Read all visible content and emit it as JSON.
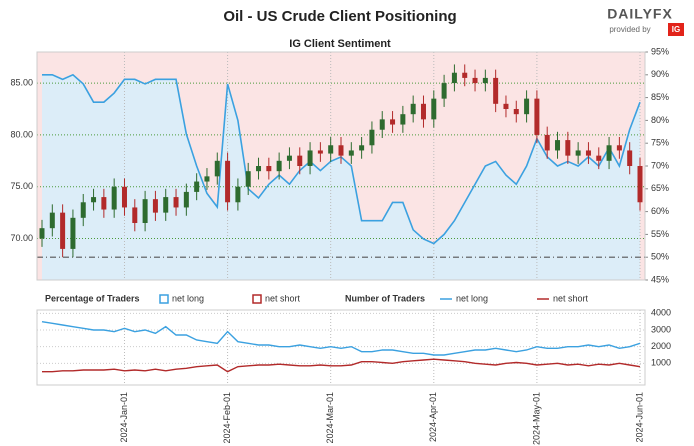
{
  "branding": {
    "logo": "DAILYFX",
    "byline": "provided by",
    "badge": "IG"
  },
  "chart_data": [
    {
      "type": "candlestick",
      "title": "Oil - US Crude Client Positioning",
      "subtitle": "IG Client Sentiment",
      "categories": [
        null,
        null,
        null,
        null,
        null,
        null,
        null,
        null,
        "2024-Jan-01",
        null,
        null,
        null,
        null,
        null,
        null,
        null,
        null,
        null,
        "2024-Feb-01",
        null,
        null,
        null,
        null,
        null,
        null,
        null,
        null,
        null,
        "2024-Mar-01",
        null,
        null,
        null,
        null,
        null,
        null,
        null,
        null,
        null,
        "2024-Apr-01",
        null,
        null,
        null,
        null,
        null,
        null,
        null,
        null,
        null,
        "2024-May-01",
        null,
        null,
        null,
        null,
        null,
        null,
        null,
        null,
        null,
        "2024-Jun-01"
      ],
      "open": [
        70.0,
        71.0,
        72.5,
        69.0,
        72.0,
        73.5,
        74.0,
        72.8,
        75.0,
        73.0,
        71.5,
        73.8,
        72.5,
        74.0,
        73.0,
        74.5,
        75.5,
        76.0,
        77.5,
        73.5,
        75.0,
        76.5,
        77.0,
        76.5,
        77.5,
        78.0,
        77.0,
        78.5,
        78.2,
        79.0,
        78.0,
        78.5,
        79.0,
        80.5,
        81.5,
        81.0,
        82.0,
        83.0,
        81.5,
        83.5,
        85.0,
        86.0,
        85.5,
        85.0,
        85.5,
        83.0,
        82.5,
        82.0,
        83.5,
        80.0,
        78.5,
        79.5,
        78.0,
        78.5,
        78.0,
        77.5,
        79.0,
        78.5,
        77.0
      ],
      "high": [
        71.8,
        73.3,
        73.3,
        72.8,
        74.3,
        74.8,
        74.8,
        75.8,
        75.8,
        73.8,
        74.6,
        74.6,
        74.8,
        74.8,
        75.3,
        76.3,
        76.8,
        78.3,
        78.3,
        75.8,
        77.3,
        77.8,
        77.8,
        78.3,
        78.8,
        78.8,
        79.3,
        79.3,
        79.8,
        79.8,
        79.3,
        79.8,
        81.3,
        82.3,
        82.3,
        82.8,
        83.8,
        83.8,
        84.3,
        85.8,
        86.8,
        86.8,
        86.3,
        86.3,
        86.3,
        83.8,
        83.3,
        84.3,
        84.3,
        80.8,
        80.3,
        80.3,
        79.3,
        79.3,
        78.8,
        79.8,
        79.8,
        79.3,
        77.8
      ],
      "low": [
        69.2,
        70.2,
        68.2,
        68.2,
        71.2,
        72.7,
        72.0,
        72.0,
        72.2,
        70.7,
        70.7,
        71.7,
        71.7,
        72.2,
        72.2,
        73.7,
        74.7,
        75.2,
        72.7,
        72.7,
        74.2,
        75.7,
        75.7,
        75.7,
        76.7,
        76.2,
        76.2,
        77.4,
        77.4,
        77.2,
        77.2,
        77.7,
        78.2,
        79.7,
        80.2,
        80.2,
        81.2,
        80.7,
        80.7,
        82.7,
        84.2,
        84.7,
        84.2,
        84.2,
        82.2,
        81.7,
        81.2,
        81.2,
        79.2,
        77.7,
        77.7,
        77.2,
        77.2,
        77.2,
        76.7,
        76.7,
        77.7,
        76.2,
        72.7
      ],
      "close": [
        71.0,
        72.5,
        69.0,
        72.0,
        73.5,
        74.0,
        72.8,
        75.0,
        73.0,
        71.5,
        73.8,
        72.5,
        74.0,
        73.0,
        74.5,
        75.5,
        76.0,
        77.5,
        73.5,
        75.0,
        76.5,
        77.0,
        76.5,
        77.5,
        78.0,
        77.0,
        78.5,
        78.2,
        79.0,
        78.0,
        78.5,
        79.0,
        80.5,
        81.5,
        81.0,
        82.0,
        83.0,
        81.5,
        83.5,
        85.0,
        86.0,
        85.5,
        85.0,
        85.5,
        83.0,
        82.5,
        82.0,
        83.5,
        80.0,
        78.5,
        79.5,
        78.0,
        78.5,
        78.0,
        77.5,
        79.0,
        78.5,
        77.0,
        73.5
      ],
      "up_color": "#2e6b2f",
      "down_color": "#b22a2a",
      "ylim": [
        66,
        88
      ],
      "yticks": [
        {
          "value": 70,
          "label": "70.00"
        },
        {
          "value": 75,
          "label": "75.00"
        },
        {
          "value": 80,
          "label": "80.00"
        },
        {
          "value": 85,
          "label": "85.00"
        }
      ],
      "y2lim": [
        45,
        95
      ],
      "y2ticks": [
        {
          "value": 45,
          "label": "45%"
        },
        {
          "value": 50,
          "label": "50%"
        },
        {
          "value": 55,
          "label": "55%"
        },
        {
          "value": 60,
          "label": "60%"
        },
        {
          "value": 65,
          "label": "65%"
        },
        {
          "value": 70,
          "label": "70%"
        },
        {
          "value": 75,
          "label": "75%"
        },
        {
          "value": 80,
          "label": "80%"
        },
        {
          "value": 85,
          "label": "85%"
        },
        {
          "value": 90,
          "label": "90%"
        },
        {
          "value": 95,
          "label": "95%"
        }
      ],
      "reference_y2": 50,
      "grid": true,
      "legend": {
        "title": "Percentage of Traders",
        "entries": [
          {
            "name": "net long",
            "color": "#3ba1e0"
          },
          {
            "name": "net short",
            "color": "#b22a2a"
          }
        ]
      },
      "series": [
        {
          "name": "net long",
          "color": "#3ba1e0",
          "axis": "y2",
          "values": [
            90,
            90,
            89,
            90,
            88,
            84,
            84,
            86,
            89,
            89,
            88,
            89,
            89,
            89,
            77,
            70,
            64,
            61,
            88,
            80,
            65,
            63,
            66,
            68,
            66,
            69,
            71,
            69,
            71,
            72,
            70,
            58,
            58,
            58,
            62,
            62,
            56,
            54,
            53,
            55,
            58,
            62,
            66,
            70,
            71,
            68,
            66,
            70,
            76,
            72,
            70,
            71,
            70,
            72,
            70,
            74,
            70,
            78,
            84
          ]
        }
      ]
    },
    {
      "type": "line",
      "legend_title": "Number of Traders",
      "ylim": [
        -300,
        4200
      ],
      "yticks": [
        1000,
        2000,
        3000,
        4000
      ],
      "series": [
        {
          "name": "net long",
          "color": "#3ba1e0",
          "values": [
            3500,
            3400,
            3300,
            3200,
            3100,
            3000,
            3000,
            2900,
            3100,
            2900,
            3000,
            2800,
            3200,
            2700,
            2700,
            2400,
            2300,
            2200,
            2900,
            2300,
            2200,
            2100,
            2100,
            2000,
            2000,
            2100,
            2000,
            1900,
            2000,
            1900,
            2000,
            1700,
            1700,
            1800,
            1800,
            1700,
            1600,
            1600,
            1500,
            1500,
            1600,
            1700,
            1800,
            1800,
            1900,
            1800,
            1700,
            1800,
            2000,
            1900,
            1900,
            2000,
            2000,
            2100,
            2000,
            2100,
            1900,
            2000,
            2200
          ]
        },
        {
          "name": "net short",
          "color": "#b22a2a",
          "values": [
            500,
            500,
            550,
            550,
            600,
            600,
            600,
            650,
            550,
            600,
            550,
            650,
            550,
            650,
            700,
            800,
            850,
            900,
            500,
            800,
            850,
            900,
            900,
            950,
            900,
            850,
            850,
            900,
            850,
            850,
            900,
            1100,
            1100,
            1050,
            1000,
            1100,
            1150,
            1200,
            1250,
            1200,
            1150,
            1100,
            1000,
            950,
            900,
            1000,
            1050,
            1000,
            900,
            950,
            1000,
            900,
            950,
            850,
            950,
            900,
            1000,
            900,
            800
          ]
        }
      ]
    }
  ]
}
